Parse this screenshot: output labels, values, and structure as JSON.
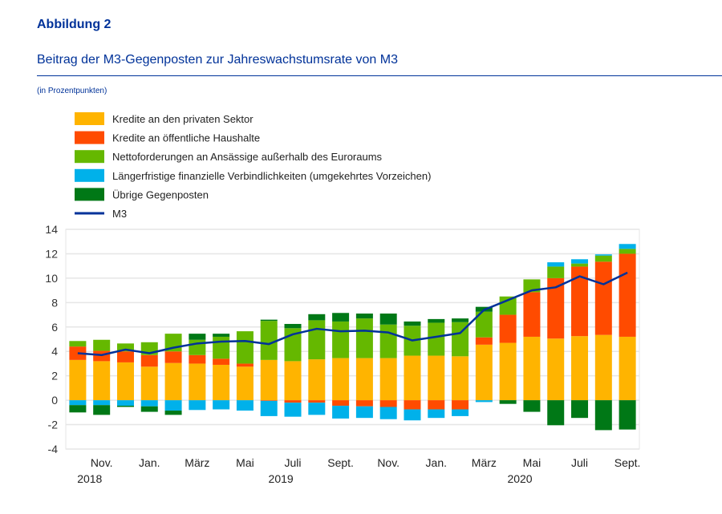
{
  "header": {
    "figure_number": "Abbildung 2",
    "title": "Beitrag der M3-Gegenposten zur Jahreswachstumsrate von M3",
    "unit": "(in Prozentpunkten)"
  },
  "chart_data": {
    "type": "bar",
    "stacked": true,
    "ylim": [
      -4,
      14
    ],
    "yticks": [
      -4,
      -2,
      0,
      2,
      4,
      6,
      8,
      10,
      12,
      14
    ],
    "grid": true,
    "legend_position": "top-left",
    "categories": [
      "Okt. 2018",
      "Nov. 2018",
      "Dez. 2018",
      "Jan. 2019",
      "Feb. 2019",
      "März 2019",
      "Apr. 2019",
      "Mai 2019",
      "Juni 2019",
      "Juli 2019",
      "Aug. 2019",
      "Sept. 2019",
      "Okt. 2019",
      "Nov. 2019",
      "Dez. 2019",
      "Jan. 2020",
      "Feb. 2020",
      "März 2020",
      "Apr. 2020",
      "Mai 2020",
      "Juni 2020",
      "Juli 2020",
      "Aug. 2020",
      "Sept. 2020"
    ],
    "xtick_labels": [
      {
        "index": 1,
        "label": "Nov.",
        "year": "2018"
      },
      {
        "index": 3,
        "label": "Jan.",
        "year": ""
      },
      {
        "index": 5,
        "label": "März",
        "year": ""
      },
      {
        "index": 7,
        "label": "Mai",
        "year": ""
      },
      {
        "index": 9,
        "label": "Juli",
        "year": "2019"
      },
      {
        "index": 11,
        "label": "Sept.",
        "year": ""
      },
      {
        "index": 13,
        "label": "Nov.",
        "year": ""
      },
      {
        "index": 15,
        "label": "Jan.",
        "year": ""
      },
      {
        "index": 17,
        "label": "März",
        "year": ""
      },
      {
        "index": 19,
        "label": "Mai",
        "year": "2020"
      },
      {
        "index": 21,
        "label": "Juli",
        "year": ""
      },
      {
        "index": 23,
        "label": "Sept.",
        "year": ""
      }
    ],
    "series": [
      {
        "name": "Kredite an den privaten Sektor",
        "color": "#FFB400",
        "kind": "bar",
        "values": [
          3.3,
          3.2,
          3.1,
          2.75,
          3.05,
          3.0,
          2.9,
          2.75,
          3.3,
          3.2,
          3.35,
          3.45,
          3.45,
          3.45,
          3.65,
          3.65,
          3.6,
          4.55,
          4.7,
          5.2,
          5.05,
          5.25,
          5.35,
          5.2
        ]
      },
      {
        "name": "Kredite an öffentliche Haushalte",
        "color": "#FF4B00",
        "kind": "bar",
        "values": [
          1.1,
          0.85,
          0.9,
          0.95,
          0.95,
          0.7,
          0.5,
          0.25,
          -0.05,
          -0.2,
          -0.2,
          -0.45,
          -0.5,
          -0.55,
          -0.75,
          -0.75,
          -0.75,
          0.6,
          2.3,
          3.65,
          4.95,
          5.7,
          6.0,
          6.8
        ]
      },
      {
        "name": "Nettoforderungen an Ansässige außerhalb des Euroraums",
        "color": "#65B800",
        "kind": "bar",
        "values": [
          0.45,
          0.9,
          0.65,
          1.05,
          1.45,
          1.25,
          1.8,
          2.65,
          3.2,
          2.7,
          3.2,
          3.0,
          3.25,
          2.75,
          2.45,
          2.7,
          2.8,
          2.1,
          1.5,
          1.05,
          0.95,
          0.25,
          0.5,
          0.4
        ]
      },
      {
        "name": "Längerfristige finanzielle Verbindlichkeiten (umgekehrtes Vorzeichen)",
        "color": "#00B1EA",
        "kind": "bar",
        "values": [
          -0.4,
          -0.4,
          -0.45,
          -0.5,
          -0.85,
          -0.8,
          -0.75,
          -0.85,
          -1.25,
          -1.15,
          -1.0,
          -1.05,
          -0.95,
          -1.0,
          -0.9,
          -0.7,
          -0.55,
          -0.15,
          0,
          0,
          0.35,
          0.35,
          0.1,
          0.4
        ]
      },
      {
        "name": "Übrige Gegenposten",
        "color": "#007816",
        "kind": "bar",
        "values": [
          -0.6,
          -0.8,
          -0.1,
          -0.45,
          -0.35,
          0.5,
          0.25,
          0,
          0.1,
          0.35,
          0.5,
          0.7,
          0.4,
          0.9,
          0.35,
          0.3,
          0.3,
          0.4,
          -0.3,
          -0.95,
          -2.05,
          -1.45,
          -2.45,
          -2.4
        ]
      },
      {
        "name": "M3",
        "color": "#003299",
        "kind": "line",
        "values": [
          3.85,
          3.7,
          4.15,
          3.85,
          4.3,
          4.65,
          4.8,
          4.85,
          4.6,
          5.4,
          5.85,
          5.65,
          5.7,
          5.55,
          4.9,
          5.2,
          5.5,
          7.4,
          8.2,
          9.0,
          9.25,
          10.15,
          9.5,
          10.45
        ]
      }
    ]
  }
}
